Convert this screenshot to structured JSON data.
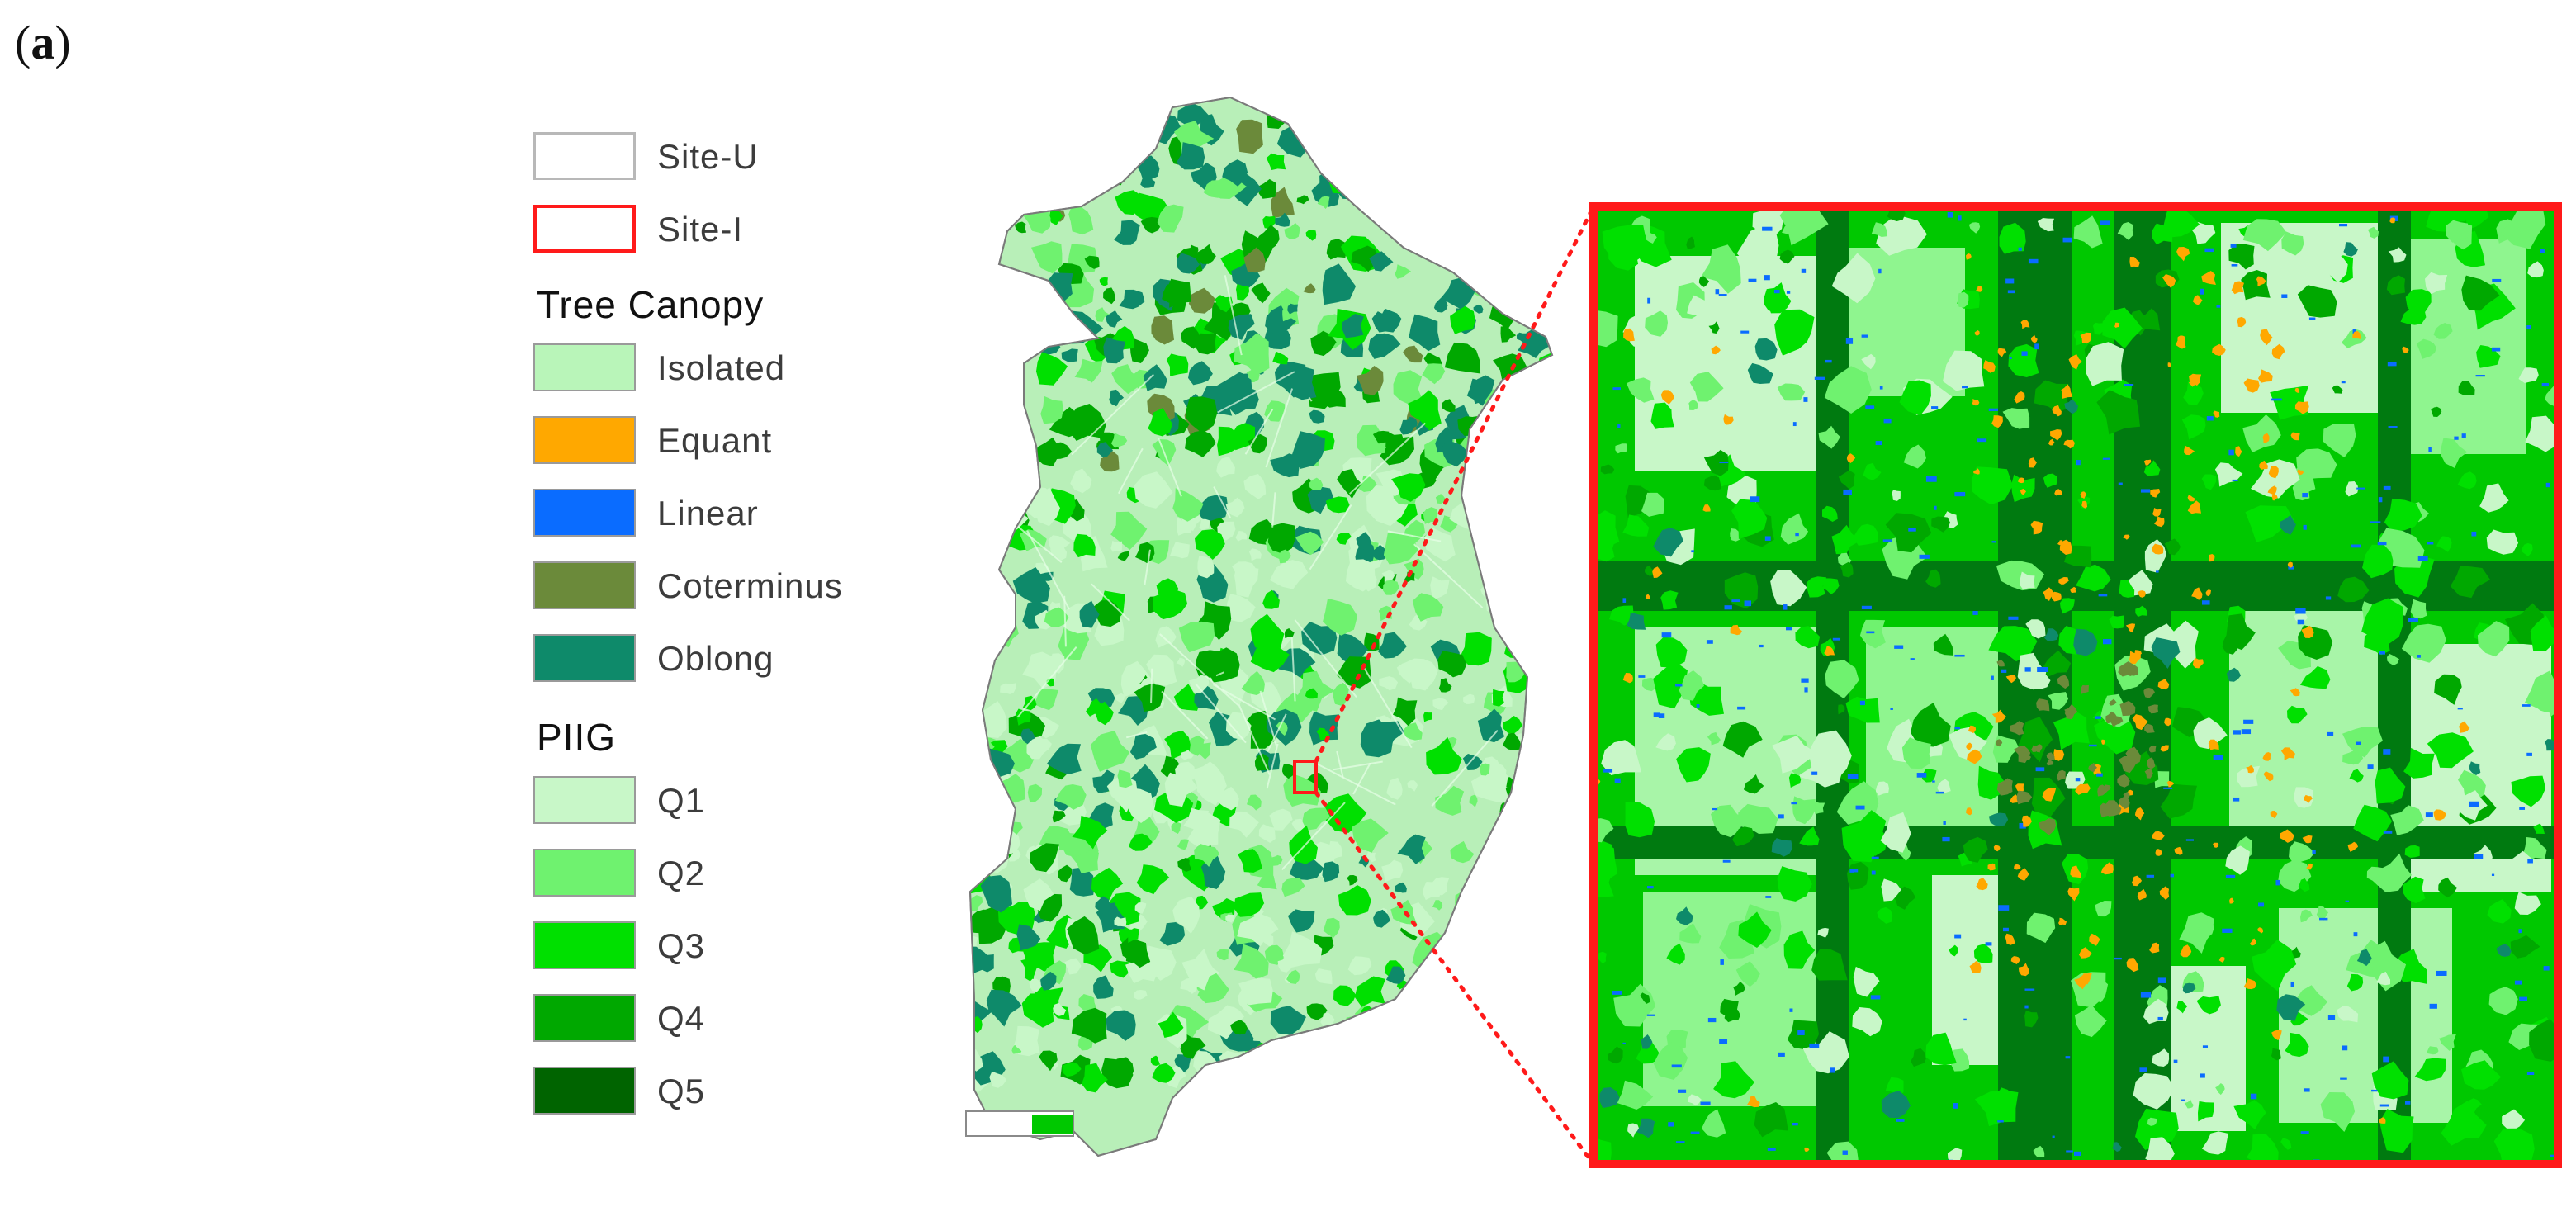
{
  "panel_label": {
    "open": "(",
    "letter": "a",
    "close": ")"
  },
  "legend": {
    "boundaries": [
      {
        "label": "Site-U",
        "style": "outline",
        "color": "#bdbdbd",
        "icon": "site-u-boundary-swatch"
      },
      {
        "label": "Site-I",
        "style": "outline",
        "color": "#ff1a1a",
        "icon": "site-i-boundary-swatch"
      }
    ],
    "tree_canopy": {
      "heading": "Tree Canopy",
      "items": [
        {
          "label": "Isolated",
          "color": "#b9f5b9"
        },
        {
          "label": "Equant",
          "color": "#ffa800"
        },
        {
          "label": "Linear",
          "color": "#0a6cff"
        },
        {
          "label": "Coterminus",
          "color": "#6b8a3a"
        },
        {
          "label": "Oblong",
          "color": "#0e8a6a"
        }
      ]
    },
    "piig": {
      "heading": "PIIG",
      "items": [
        {
          "label": "Q1",
          "color": "#c8f7c8"
        },
        {
          "label": "Q2",
          "color": "#6ff26f"
        },
        {
          "label": "Q3",
          "color": "#00e000"
        },
        {
          "label": "Q4",
          "color": "#00a800"
        },
        {
          "label": "Q5",
          "color": "#006400"
        }
      ]
    }
  },
  "map": {
    "city_fill_colors": [
      "#c8f7c8",
      "#6ff26f",
      "#00e000",
      "#00a800",
      "#006400",
      "#0e8a6a",
      "#6b8a3a"
    ],
    "inset_frame_color": "#ff1a1a",
    "connector_style": "dotted",
    "inset_background": "#00c800"
  }
}
